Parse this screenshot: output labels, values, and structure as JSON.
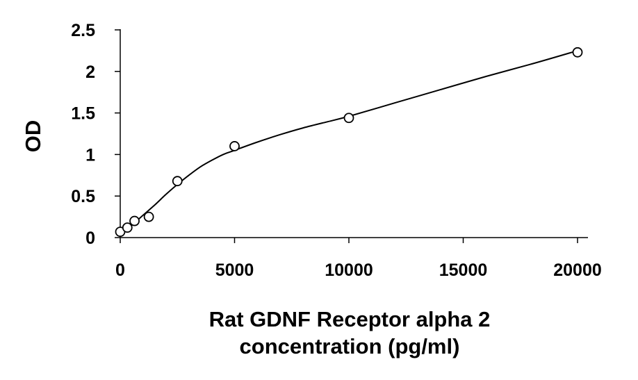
{
  "chart_data": {
    "type": "scatter",
    "title": "",
    "xlabel_lines": [
      "Rat GDNF Receptor alpha 2",
      "concentration (pg/ml)"
    ],
    "ylabel": "OD",
    "xlim": [
      0,
      20000
    ],
    "ylim": [
      0,
      2.5
    ],
    "x_ticks": [
      0,
      5000,
      10000,
      15000,
      20000
    ],
    "x_tick_labels": [
      "0",
      "5000",
      "10000",
      "15000",
      "20000"
    ],
    "y_ticks": [
      0,
      0.5,
      1,
      1.5,
      2,
      2.5
    ],
    "y_tick_labels": [
      "0",
      "0.5",
      "1",
      "1.5",
      "2",
      "2.5"
    ],
    "grid": false,
    "legend": false,
    "series": [
      {
        "marker": "open-circle",
        "x": [
          0,
          312,
          625,
          1250,
          2500,
          5000,
          10000,
          20000
        ],
        "y": [
          0.07,
          0.12,
          0.2,
          0.25,
          0.68,
          1.1,
          1.44,
          2.23
        ]
      }
    ],
    "fit_curve": {
      "x": [
        0,
        500,
        1000,
        1500,
        2000,
        2500,
        3000,
        3500,
        4000,
        4500,
        5000,
        6000,
        7000,
        8000,
        9000,
        10000,
        12000,
        14000,
        16000,
        18000,
        20000
      ],
      "y": [
        0.06,
        0.15,
        0.27,
        0.39,
        0.52,
        0.64,
        0.75,
        0.85,
        0.93,
        1.0,
        1.05,
        1.15,
        1.24,
        1.32,
        1.39,
        1.46,
        1.62,
        1.78,
        1.94,
        2.09,
        2.25
      ]
    },
    "colors": {
      "axis": "#000000",
      "marker": "#000000",
      "curve": "#000000"
    }
  }
}
